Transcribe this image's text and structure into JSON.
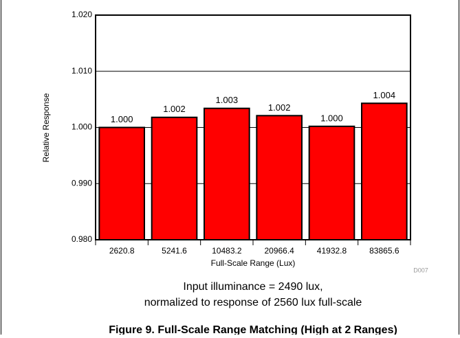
{
  "chart_data": {
    "type": "bar",
    "categories": [
      "2620.8",
      "5241.6",
      "10483.2",
      "20966.4",
      "41932.8",
      "83865.6"
    ],
    "values": [
      1.0,
      1.0018,
      1.0034,
      1.0021,
      1.0002,
      1.0043
    ],
    "value_labels": [
      "1.000",
      "1.002",
      "1.003",
      "1.002",
      "1.000",
      "1.004"
    ],
    "color": "#ff0000",
    "ylim": [
      0.98,
      1.02
    ],
    "yticks": [
      {
        "value": 0.98,
        "label": "0.980"
      },
      {
        "value": 0.99,
        "label": "0.990"
      },
      {
        "value": 1.0,
        "label": "1.000"
      },
      {
        "value": 1.01,
        "label": "1.010"
      },
      {
        "value": 1.02,
        "label": "1.020"
      }
    ],
    "grid": true,
    "xlabel": "Full-Scale Range (Lux)",
    "ylabel": "Relative Response",
    "code": "D007",
    "annotation": [
      "Input illuminance = 2490 lux,",
      "normalized to response of 2560 lux full-scale"
    ],
    "caption": "Figure 9. Full-Scale Range Matching (High at 2 Ranges)"
  }
}
